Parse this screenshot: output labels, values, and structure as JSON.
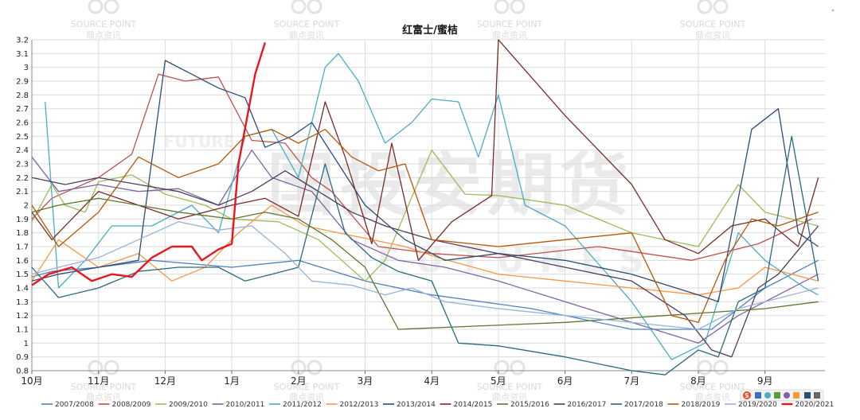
{
  "chart_data": {
    "type": "line",
    "title": "红富士/蜜桔",
    "ylim": [
      0.8,
      3.2
    ],
    "yticks": [
      0.8,
      0.9,
      1,
      1.1,
      1.2,
      1.3,
      1.4,
      1.5,
      1.6,
      1.7,
      1.8,
      1.9,
      2,
      2.1,
      2.2,
      2.3,
      2.4,
      2.5,
      2.6,
      2.7,
      2.8,
      2.9,
      3,
      3.1,
      3.2
    ],
    "x_months": [
      "10月",
      "11月",
      "12月",
      "1月",
      "2月",
      "3月",
      "4月",
      "5月",
      "6月",
      "7月",
      "8月",
      "9月"
    ],
    "xlim_months": [
      0,
      11.9
    ],
    "grid": true,
    "legend_position": "bottom",
    "series": [
      {
        "name": "2007/2008",
        "color": "#4f81bd",
        "points": [
          [
            0,
            1.48
          ],
          [
            0.3,
            1.52
          ],
          [
            1,
            1.55
          ],
          [
            1.8,
            1.6
          ],
          [
            3,
            1.55
          ],
          [
            4,
            1.6
          ],
          [
            5,
            1.45
          ],
          [
            6,
            1.35
          ],
          [
            7.5,
            1.25
          ],
          [
            9,
            1.1
          ],
          [
            10.2,
            1.1
          ],
          [
            11,
            1.4
          ],
          [
            11.8,
            1.6
          ]
        ]
      },
      {
        "name": "2008/2009",
        "color": "#c0504d",
        "points": [
          [
            0,
            1.9
          ],
          [
            0.3,
            2.05
          ],
          [
            1,
            2.2
          ],
          [
            1.5,
            2.37
          ],
          [
            1.9,
            2.95
          ],
          [
            2.3,
            2.9
          ],
          [
            2.8,
            2.93
          ],
          [
            3.3,
            2.47
          ],
          [
            3.8,
            2.45
          ],
          [
            4.2,
            2.2
          ],
          [
            4.5,
            2.1
          ],
          [
            5.2,
            1.7
          ],
          [
            6,
            1.65
          ],
          [
            7,
            1.62
          ],
          [
            8.5,
            1.7
          ],
          [
            9.9,
            1.6
          ],
          [
            10.9,
            1.72
          ],
          [
            11.7,
            1.9
          ]
        ]
      },
      {
        "name": "2009/2010",
        "color": "#9bbb59",
        "points": [
          [
            0,
            1.88
          ],
          [
            0.3,
            2.15
          ],
          [
            0.5,
            2.0
          ],
          [
            0.8,
            1.95
          ],
          [
            1,
            2.17
          ],
          [
            1.5,
            2.22
          ],
          [
            2,
            2.08
          ],
          [
            2.6,
            2.0
          ],
          [
            3,
            1.9
          ],
          [
            3.7,
            1.88
          ],
          [
            4.3,
            1.75
          ],
          [
            5,
            1.45
          ],
          [
            5.3,
            1.6
          ],
          [
            6,
            2.4
          ],
          [
            6.5,
            2.08
          ],
          [
            7,
            2.07
          ],
          [
            8,
            2.0
          ],
          [
            9,
            1.8
          ],
          [
            10,
            1.7
          ],
          [
            10.6,
            2.15
          ],
          [
            11,
            1.95
          ],
          [
            11.8,
            1.85
          ]
        ]
      },
      {
        "name": "2010/2011",
        "color": "#8064a2",
        "points": [
          [
            0,
            2.35
          ],
          [
            0.4,
            2.1
          ],
          [
            1,
            2.15
          ],
          [
            1.6,
            2.1
          ],
          [
            2.2,
            2.12
          ],
          [
            2.8,
            2.0
          ],
          [
            3.3,
            2.4
          ],
          [
            3.6,
            2.2
          ],
          [
            4.2,
            2.1
          ],
          [
            4.8,
            1.75
          ],
          [
            5.5,
            1.6
          ],
          [
            6.2,
            1.55
          ],
          [
            7,
            1.45
          ],
          [
            8,
            1.3
          ],
          [
            9,
            1.15
          ],
          [
            10,
            1.0
          ],
          [
            10.6,
            1.2
          ],
          [
            11,
            1.3
          ],
          [
            11.8,
            1.5
          ]
        ]
      },
      {
        "name": "2011/2012",
        "color": "#4bacc6",
        "points": [
          [
            0.2,
            2.75
          ],
          [
            0.4,
            1.4
          ],
          [
            0.8,
            1.6
          ],
          [
            1.2,
            1.85
          ],
          [
            1.8,
            1.85
          ],
          [
            2.4,
            2.0
          ],
          [
            2.8,
            1.8
          ],
          [
            3.2,
            2.5
          ],
          [
            3.6,
            2.55
          ],
          [
            4,
            2.2
          ],
          [
            4.4,
            3.0
          ],
          [
            4.6,
            3.1
          ],
          [
            4.9,
            2.9
          ],
          [
            5.3,
            2.45
          ],
          [
            5.7,
            2.6
          ],
          [
            6,
            2.77
          ],
          [
            6.4,
            2.75
          ],
          [
            6.7,
            2.35
          ],
          [
            7,
            2.8
          ],
          [
            7.4,
            2.0
          ],
          [
            8,
            1.85
          ],
          [
            9,
            1.3
          ],
          [
            9.6,
            0.88
          ],
          [
            10.1,
            1.0
          ],
          [
            10.6,
            1.8
          ],
          [
            11,
            1.6
          ],
          [
            11.6,
            1.4
          ],
          [
            11.8,
            1.35
          ]
        ]
      },
      {
        "name": "2012/2013",
        "color": "#f79646",
        "points": [
          [
            0,
            1.45
          ],
          [
            0.4,
            1.75
          ],
          [
            1,
            1.55
          ],
          [
            1.6,
            1.65
          ],
          [
            2.1,
            1.45
          ],
          [
            2.6,
            1.55
          ],
          [
            3.1,
            1.8
          ],
          [
            3.6,
            2.0
          ],
          [
            4.1,
            1.85
          ],
          [
            4.6,
            1.8
          ],
          [
            5.1,
            1.75
          ],
          [
            5.6,
            1.7
          ],
          [
            6.1,
            1.62
          ],
          [
            7,
            1.5
          ],
          [
            8,
            1.45
          ],
          [
            9,
            1.4
          ],
          [
            10,
            1.35
          ],
          [
            10.6,
            1.4
          ],
          [
            11,
            1.55
          ],
          [
            11.8,
            1.45
          ]
        ]
      },
      {
        "name": "2013/2014",
        "color": "#2c4d75",
        "points": [
          [
            0,
            1.45
          ],
          [
            0.4,
            1.5
          ],
          [
            1,
            1.55
          ],
          [
            1.6,
            1.6
          ],
          [
            2,
            3.05
          ],
          [
            2.4,
            2.95
          ],
          [
            2.8,
            2.85
          ],
          [
            3.2,
            2.78
          ],
          [
            3.5,
            2.42
          ],
          [
            3.9,
            2.5
          ],
          [
            4.2,
            2.6
          ],
          [
            4.6,
            2.3
          ],
          [
            5,
            2.0
          ],
          [
            5.6,
            1.75
          ],
          [
            6.2,
            1.6
          ],
          [
            7,
            1.65
          ],
          [
            8,
            1.6
          ],
          [
            9,
            1.5
          ],
          [
            10,
            1.35
          ],
          [
            10.3,
            1.3
          ],
          [
            10.8,
            2.55
          ],
          [
            11.2,
            2.7
          ],
          [
            11.5,
            1.8
          ],
          [
            11.8,
            1.7
          ]
        ]
      },
      {
        "name": "2014/2015",
        "color": "#772c2a",
        "points": [
          [
            0,
            1.95
          ],
          [
            0.3,
            1.75
          ],
          [
            1,
            2.1
          ],
          [
            1.6,
            2.0
          ],
          [
            2.2,
            1.9
          ],
          [
            3,
            2.0
          ],
          [
            3.5,
            2.05
          ],
          [
            4,
            1.92
          ],
          [
            4.4,
            2.75
          ],
          [
            4.7,
            2.35
          ],
          [
            5.1,
            1.72
          ],
          [
            5.4,
            2.45
          ],
          [
            5.8,
            1.6
          ],
          [
            6.3,
            1.88
          ],
          [
            6.9,
            2.07
          ],
          [
            7,
            3.2
          ],
          [
            8,
            2.65
          ],
          [
            9,
            2.15
          ],
          [
            9.5,
            1.75
          ],
          [
            10,
            1.65
          ],
          [
            10.5,
            1.85
          ],
          [
            11,
            1.9
          ],
          [
            11.5,
            1.7
          ],
          [
            11.8,
            2.2
          ]
        ]
      },
      {
        "name": "2015/2016",
        "color": "#5f7530",
        "points": [
          [
            0,
            1.95
          ],
          [
            0.4,
            2.0
          ],
          [
            1,
            2.05
          ],
          [
            1.6,
            2.0
          ],
          [
            2.2,
            1.95
          ],
          [
            3,
            1.9
          ],
          [
            3.5,
            1.95
          ],
          [
            4,
            1.9
          ],
          [
            4.5,
            1.75
          ],
          [
            5,
            1.55
          ],
          [
            5.5,
            1.1
          ],
          [
            6.5,
            1.12
          ],
          [
            8,
            1.15
          ],
          [
            9.5,
            1.2
          ],
          [
            11,
            1.25
          ],
          [
            11.8,
            1.3
          ]
        ]
      },
      {
        "name": "2016/2017",
        "color": "#4d3b62",
        "points": [
          [
            0,
            2.2
          ],
          [
            0.5,
            2.15
          ],
          [
            1,
            2.2
          ],
          [
            1.6,
            2.15
          ],
          [
            2.2,
            2.1
          ],
          [
            2.8,
            2.0
          ],
          [
            3.3,
            2.1
          ],
          [
            3.8,
            2.25
          ],
          [
            4.3,
            2.1
          ],
          [
            4.8,
            1.95
          ],
          [
            5.3,
            1.85
          ],
          [
            6,
            1.75
          ],
          [
            7,
            1.65
          ],
          [
            8,
            1.55
          ],
          [
            9,
            1.45
          ],
          [
            9.8,
            1.2
          ],
          [
            10.2,
            0.95
          ],
          [
            10.5,
            0.9
          ],
          [
            10.9,
            1.4
          ],
          [
            11.2,
            1.5
          ],
          [
            11.8,
            1.85
          ]
        ]
      },
      {
        "name": "2017/2018",
        "color": "#276a7c",
        "points": [
          [
            0,
            1.55
          ],
          [
            0.4,
            1.33
          ],
          [
            1,
            1.4
          ],
          [
            1.6,
            1.52
          ],
          [
            2.2,
            1.55
          ],
          [
            2.8,
            1.55
          ],
          [
            3.2,
            1.45
          ],
          [
            3.6,
            1.5
          ],
          [
            4,
            1.55
          ],
          [
            4.4,
            2.3
          ],
          [
            4.7,
            1.8
          ],
          [
            5.1,
            1.62
          ],
          [
            5.5,
            1.52
          ],
          [
            6,
            1.45
          ],
          [
            6.4,
            1.0
          ],
          [
            7,
            0.98
          ],
          [
            8,
            0.9
          ],
          [
            9,
            0.8
          ],
          [
            9.5,
            0.77
          ],
          [
            10,
            0.95
          ],
          [
            10.3,
            0.9
          ],
          [
            10.6,
            1.3
          ],
          [
            11,
            1.4
          ],
          [
            11.4,
            2.5
          ],
          [
            11.8,
            1.45
          ]
        ]
      },
      {
        "name": "2018/2019",
        "color": "#b65708",
        "points": [
          [
            0,
            2.0
          ],
          [
            0.4,
            1.7
          ],
          [
            1,
            1.95
          ],
          [
            1.6,
            2.35
          ],
          [
            2.2,
            2.2
          ],
          [
            2.8,
            2.3
          ],
          [
            3.2,
            2.5
          ],
          [
            3.6,
            2.55
          ],
          [
            4,
            2.45
          ],
          [
            4.4,
            2.55
          ],
          [
            4.8,
            2.35
          ],
          [
            5.2,
            2.25
          ],
          [
            5.6,
            2.3
          ],
          [
            6,
            1.75
          ],
          [
            7,
            1.7
          ],
          [
            8,
            1.75
          ],
          [
            9,
            1.8
          ],
          [
            9.6,
            1.2
          ],
          [
            10,
            1.15
          ],
          [
            10.4,
            1.6
          ],
          [
            10.8,
            1.9
          ],
          [
            11.2,
            1.85
          ],
          [
            11.8,
            1.95
          ]
        ]
      },
      {
        "name": "2019/2020",
        "color": "#95b3d7",
        "points": [
          [
            0,
            1.5
          ],
          [
            0.4,
            1.55
          ],
          [
            1,
            1.62
          ],
          [
            1.6,
            1.75
          ],
          [
            2.2,
            1.88
          ],
          [
            2.8,
            1.82
          ],
          [
            3.3,
            1.85
          ],
          [
            3.8,
            1.65
          ],
          [
            4.2,
            1.45
          ],
          [
            4.8,
            1.42
          ],
          [
            5.3,
            1.35
          ],
          [
            5.7,
            1.4
          ],
          [
            6.2,
            1.3
          ],
          [
            7,
            1.25
          ],
          [
            8,
            1.2
          ],
          [
            9,
            1.15
          ],
          [
            10,
            1.1
          ],
          [
            10.6,
            1.25
          ],
          [
            11,
            1.3
          ],
          [
            11.8,
            1.4
          ]
        ]
      },
      {
        "name": "2020/2021",
        "color": "#e8171d",
        "points": [
          [
            0,
            1.42
          ],
          [
            0.25,
            1.5
          ],
          [
            0.6,
            1.55
          ],
          [
            0.9,
            1.45
          ],
          [
            1.2,
            1.5
          ],
          [
            1.5,
            1.48
          ],
          [
            1.8,
            1.62
          ],
          [
            2.1,
            1.7
          ],
          [
            2.4,
            1.7
          ],
          [
            2.55,
            1.6
          ],
          [
            2.8,
            1.68
          ],
          [
            3.0,
            1.72
          ],
          [
            3.1,
            2.3
          ],
          [
            3.35,
            2.95
          ],
          [
            3.5,
            3.18
          ]
        ]
      }
    ]
  },
  "watermarks": {
    "logo_top": "SOURCE POINT",
    "logo_sub": "鼎点资讯",
    "big_text": "国投安期货",
    "latin_text": "FUTURES",
    "latin_small": "FUTURE"
  }
}
